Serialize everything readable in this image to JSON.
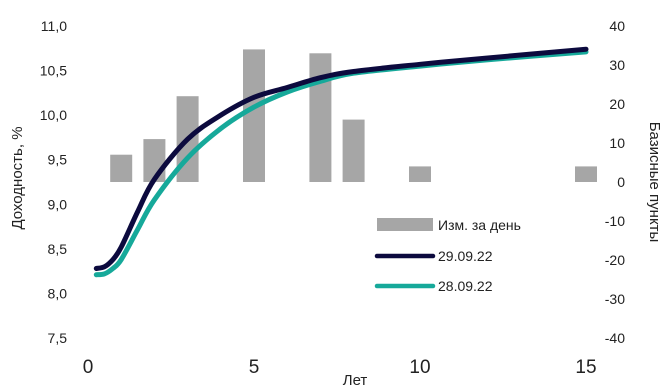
{
  "chart_data": {
    "type": "line",
    "xlabel": "Лет",
    "ylabel_left": "Доходность, %",
    "ylabel_right": "Базисные пункты",
    "xlim": [
      0,
      15
    ],
    "x_ticks": [
      "0",
      "5",
      "10",
      "15"
    ],
    "x_tick_values": [
      0,
      5,
      10,
      15
    ],
    "ylim_left": [
      7.5,
      11.0
    ],
    "y_ticks_left": [
      "7,5",
      "8,0",
      "8,5",
      "9,0",
      "9,5",
      "10,0",
      "10,5",
      "11,0"
    ],
    "y_tick_values_left": [
      7.5,
      8.0,
      8.5,
      9.0,
      9.5,
      10.0,
      10.5,
      11.0
    ],
    "ylim_right": [
      -40,
      40
    ],
    "y_ticks_right": [
      "-40",
      "-30",
      "-20",
      "-10",
      "0",
      "10",
      "20",
      "30",
      "40"
    ],
    "y_tick_values_right": [
      -40,
      -30,
      -20,
      -10,
      0,
      10,
      20,
      30,
      40
    ],
    "grid": false,
    "legend_position": "bottom-right",
    "series": [
      {
        "name": "Изм. за день",
        "type": "bar",
        "axis": "right",
        "color": "#a6a6a6",
        "x": [
          1,
          2,
          3,
          5,
          7,
          8,
          10,
          15
        ],
        "values": [
          7,
          11,
          22,
          34,
          33,
          16,
          4,
          4
        ]
      },
      {
        "name": "29.09.22",
        "type": "line",
        "axis": "left",
        "color": "#0c0a3e",
        "x": [
          0.25,
          0.5,
          0.75,
          1,
          1.5,
          2,
          3,
          4,
          5,
          6,
          7,
          8,
          10,
          12,
          15
        ],
        "values": [
          8.28,
          8.3,
          8.38,
          8.52,
          8.92,
          9.28,
          9.73,
          10.0,
          10.2,
          10.31,
          10.42,
          10.49,
          10.57,
          10.64,
          10.74
        ]
      },
      {
        "name": "28.09.22",
        "type": "line",
        "axis": "left",
        "color": "#16a99a",
        "x": [
          0.25,
          0.5,
          0.75,
          1,
          1.5,
          2,
          3,
          4,
          5,
          6,
          7,
          8,
          10,
          12,
          15
        ],
        "values": [
          8.21,
          8.22,
          8.28,
          8.38,
          8.72,
          9.05,
          9.52,
          9.85,
          10.09,
          10.26,
          10.38,
          10.47,
          10.55,
          10.62,
          10.71
        ]
      }
    ]
  }
}
